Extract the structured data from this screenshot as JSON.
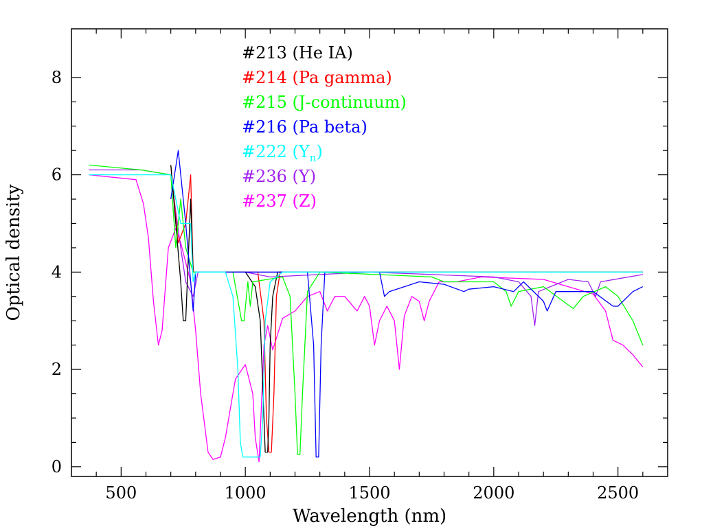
{
  "chart_data": {
    "type": "line",
    "title": "",
    "xlabel": "Wavelength (nm)",
    "ylabel": "Optical density",
    "xlim": [
      300,
      2700
    ],
    "ylim": [
      -0.2,
      9.0
    ],
    "x_ticks": [
      500,
      1000,
      1500,
      2000,
      2500
    ],
    "x_tick_labels": [
      "500",
      "1000",
      "1500",
      "2000",
      "2500"
    ],
    "y_ticks": [
      0,
      2,
      4,
      6,
      8
    ],
    "y_tick_labels": [
      "0",
      "2",
      "4",
      "6",
      "8"
    ],
    "grid": false,
    "legend_position": "top-center",
    "series": [
      {
        "name": "#213 (He IA)",
        "color": "#000000",
        "points": [
          [
            700,
            6.2
          ],
          [
            720,
            5.0
          ],
          [
            740,
            3.8
          ],
          [
            750,
            3.0
          ],
          [
            760,
            3.0
          ],
          [
            780,
            5.5
          ],
          [
            790,
            4.0
          ],
          [
            800,
            4.0
          ],
          [
            1000,
            4.0
          ],
          [
            1040,
            3.7
          ],
          [
            1060,
            3.0
          ],
          [
            1075,
            1.0
          ],
          [
            1080,
            0.3
          ],
          [
            1090,
            0.3
          ],
          [
            1095,
            1.0
          ],
          [
            1100,
            2.5
          ],
          [
            1110,
            3.5
          ],
          [
            1130,
            4.0
          ],
          [
            2600,
            4.0
          ]
        ]
      },
      {
        "name": "#214 (Pa gamma)",
        "color": "#ff0000",
        "points": [
          [
            700,
            6.2
          ],
          [
            730,
            4.6
          ],
          [
            760,
            5.0
          ],
          [
            780,
            6.0
          ],
          [
            790,
            4.0
          ],
          [
            1050,
            4.0
          ],
          [
            1075,
            3.0
          ],
          [
            1085,
            1.0
          ],
          [
            1095,
            0.3
          ],
          [
            1105,
            0.3
          ],
          [
            1115,
            1.5
          ],
          [
            1125,
            3.5
          ],
          [
            1140,
            4.0
          ],
          [
            2600,
            4.0
          ]
        ]
      },
      {
        "name": "#215 (J-continuum)",
        "color": "#00ff00",
        "points": [
          [
            370,
            6.2
          ],
          [
            580,
            6.1
          ],
          [
            700,
            6.0
          ],
          [
            720,
            4.5
          ],
          [
            740,
            5.5
          ],
          [
            760,
            4.5
          ],
          [
            790,
            4.0
          ],
          [
            950,
            4.0
          ],
          [
            985,
            3.0
          ],
          [
            995,
            3.0
          ],
          [
            1010,
            3.8
          ],
          [
            1020,
            3.3
          ],
          [
            1030,
            3.8
          ],
          [
            1150,
            3.9
          ],
          [
            1180,
            3.5
          ],
          [
            1200,
            1.5
          ],
          [
            1210,
            0.25
          ],
          [
            1220,
            0.25
          ],
          [
            1230,
            1.5
          ],
          [
            1250,
            3.6
          ],
          [
            1300,
            4.0
          ],
          [
            1750,
            3.9
          ],
          [
            1800,
            3.8
          ],
          [
            2000,
            3.8
          ],
          [
            2050,
            3.6
          ],
          [
            2070,
            3.3
          ],
          [
            2100,
            3.6
          ],
          [
            2200,
            3.7
          ],
          [
            2280,
            3.4
          ],
          [
            2320,
            3.25
          ],
          [
            2360,
            3.5
          ],
          [
            2450,
            3.7
          ],
          [
            2500,
            3.5
          ],
          [
            2560,
            3.0
          ],
          [
            2600,
            2.5
          ]
        ]
      },
      {
        "name": "#216 (Pa beta)",
        "color": "#0000ff",
        "points": [
          [
            700,
            5.5
          ],
          [
            730,
            6.5
          ],
          [
            760,
            5.0
          ],
          [
            790,
            3.2
          ],
          [
            800,
            4.0
          ],
          [
            1250,
            4.0
          ],
          [
            1275,
            2.5
          ],
          [
            1285,
            0.2
          ],
          [
            1295,
            0.2
          ],
          [
            1305,
            2.5
          ],
          [
            1320,
            4.0
          ],
          [
            1540,
            4.0
          ],
          [
            1560,
            3.5
          ],
          [
            1580,
            3.6
          ],
          [
            1700,
            3.8
          ],
          [
            1800,
            3.75
          ],
          [
            1880,
            3.6
          ],
          [
            1900,
            3.65
          ],
          [
            2000,
            3.7
          ],
          [
            2080,
            3.6
          ],
          [
            2120,
            3.8
          ],
          [
            2200,
            3.4
          ],
          [
            2215,
            3.2
          ],
          [
            2250,
            3.6
          ],
          [
            2400,
            3.6
          ],
          [
            2480,
            3.3
          ],
          [
            2500,
            3.3
          ],
          [
            2560,
            3.6
          ],
          [
            2600,
            3.7
          ]
        ]
      },
      {
        "name": "#222 (Y_n)",
        "color": "#00ffff",
        "points": [
          [
            370,
            6.0
          ],
          [
            580,
            6.0
          ],
          [
            700,
            6.0
          ],
          [
            740,
            5.0
          ],
          [
            780,
            5.0
          ],
          [
            790,
            3.8
          ],
          [
            800,
            4.0
          ],
          [
            920,
            4.0
          ],
          [
            950,
            3.5
          ],
          [
            970,
            2.0
          ],
          [
            980,
            0.5
          ],
          [
            990,
            0.2
          ],
          [
            1060,
            0.2
          ],
          [
            1070,
            1.0
          ],
          [
            1080,
            3.0
          ],
          [
            1100,
            3.8
          ],
          [
            1150,
            4.0
          ],
          [
            2600,
            4.0
          ]
        ]
      },
      {
        "name": "#236 (Y)",
        "color": "#a020f0",
        "points": [
          [
            370,
            6.1
          ],
          [
            580,
            6.1
          ],
          [
            700,
            6.0
          ],
          [
            740,
            4.5
          ],
          [
            760,
            3.8
          ],
          [
            790,
            3.5
          ],
          [
            810,
            4.0
          ],
          [
            1000,
            4.0
          ],
          [
            1100,
            3.9
          ],
          [
            1500,
            4.0
          ],
          [
            2000,
            3.9
          ],
          [
            2100,
            3.8
          ],
          [
            2150,
            3.5
          ],
          [
            2165,
            2.9
          ],
          [
            2180,
            3.6
          ],
          [
            2300,
            3.85
          ],
          [
            2380,
            3.8
          ],
          [
            2410,
            3.5
          ],
          [
            2430,
            3.8
          ],
          [
            2600,
            3.95
          ]
        ]
      },
      {
        "name": "#237 (Z)",
        "color": "#ff00ff",
        "points": [
          [
            370,
            6.0
          ],
          [
            560,
            5.9
          ],
          [
            590,
            5.4
          ],
          [
            610,
            4.7
          ],
          [
            630,
            3.4
          ],
          [
            650,
            2.5
          ],
          [
            665,
            2.8
          ],
          [
            690,
            4.5
          ],
          [
            720,
            4.9
          ],
          [
            740,
            4.6
          ],
          [
            780,
            3.8
          ],
          [
            800,
            2.8
          ],
          [
            820,
            1.5
          ],
          [
            850,
            0.3
          ],
          [
            870,
            0.15
          ],
          [
            900,
            0.2
          ],
          [
            920,
            0.6
          ],
          [
            960,
            1.8
          ],
          [
            1000,
            2.1
          ],
          [
            1030,
            1.5
          ],
          [
            1040,
            0.6
          ],
          [
            1055,
            0.1
          ],
          [
            1075,
            2.5
          ],
          [
            1090,
            2.9
          ],
          [
            1110,
            2.4
          ],
          [
            1150,
            3.05
          ],
          [
            1200,
            3.2
          ],
          [
            1250,
            3.5
          ],
          [
            1300,
            3.6
          ],
          [
            1330,
            3.2
          ],
          [
            1360,
            3.5
          ],
          [
            1400,
            3.5
          ],
          [
            1450,
            3.2
          ],
          [
            1480,
            3.5
          ],
          [
            1500,
            3.3
          ],
          [
            1520,
            2.5
          ],
          [
            1540,
            3.0
          ],
          [
            1570,
            3.3
          ],
          [
            1600,
            3.0
          ],
          [
            1620,
            2.0
          ],
          [
            1640,
            3.1
          ],
          [
            1670,
            3.5
          ],
          [
            1700,
            3.4
          ],
          [
            1720,
            3.0
          ],
          [
            1740,
            3.4
          ],
          [
            1780,
            3.8
          ],
          [
            1850,
            3.8
          ],
          [
            1950,
            3.9
          ],
          [
            2200,
            3.85
          ],
          [
            2300,
            3.7
          ],
          [
            2400,
            3.55
          ],
          [
            2450,
            3.2
          ],
          [
            2480,
            2.6
          ],
          [
            2520,
            2.5
          ],
          [
            2560,
            2.3
          ],
          [
            2600,
            2.05
          ]
        ]
      }
    ]
  },
  "legend": {
    "entries": [
      {
        "id": "#213",
        "label": "(He IA)",
        "color": "#000000"
      },
      {
        "id": "#214",
        "label": "(Pa gamma)",
        "color": "#ff0000"
      },
      {
        "id": "#215",
        "label": "(J-continuum)",
        "color": "#00ff00"
      },
      {
        "id": "#216",
        "label": "(Pa beta)",
        "color": "#0000ff"
      },
      {
        "id": "#222",
        "label": "(Y",
        "subscript": "n",
        "label_suffix": ")",
        "color": "#00ffff"
      },
      {
        "id": "#236",
        "label": "(Y)",
        "color": "#a020f0"
      },
      {
        "id": "#237",
        "label": "(Z)",
        "color": "#ff00ff"
      }
    ]
  }
}
